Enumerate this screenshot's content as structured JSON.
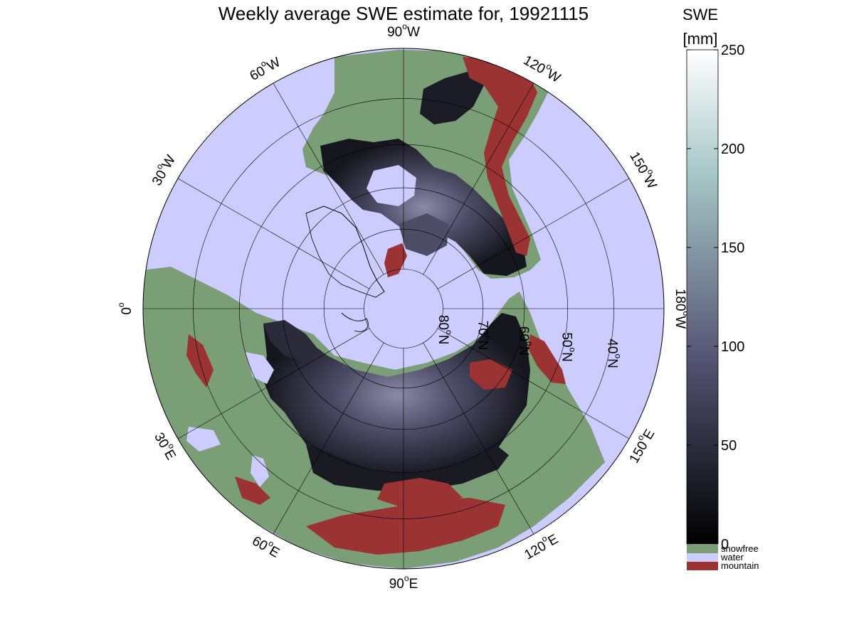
{
  "title": "Weekly average SWE estimate for, 19921115",
  "colorbar": {
    "title_line1": "SWE",
    "title_line2": "[mm]",
    "ticks": [
      0,
      50,
      100,
      150,
      200,
      250
    ],
    "range": [
      0,
      250
    ],
    "colormap": "bone",
    "categories": [
      {
        "label": "snowfree",
        "color": "#7a9e76"
      },
      {
        "label": "water",
        "color": "#ccccff"
      },
      {
        "label": "mountain",
        "color": "#9b3333"
      }
    ]
  },
  "map": {
    "projection": "north-polar-stereographic",
    "latitude_rings": [
      {
        "value": "80",
        "hemi": "N"
      },
      {
        "value": "70",
        "hemi": "N"
      },
      {
        "value": "60",
        "hemi": "N"
      },
      {
        "value": "50",
        "hemi": "N"
      },
      {
        "value": "40",
        "hemi": "N"
      }
    ],
    "longitude_labels": [
      {
        "value": "0",
        "hemi": ""
      },
      {
        "value": "30",
        "hemi": "E"
      },
      {
        "value": "60",
        "hemi": "E"
      },
      {
        "value": "90",
        "hemi": "E"
      },
      {
        "value": "120",
        "hemi": "E"
      },
      {
        "value": "150",
        "hemi": "E"
      },
      {
        "value": "180",
        "hemi": "W"
      },
      {
        "value": "150",
        "hemi": "W"
      },
      {
        "value": "120",
        "hemi": "W"
      },
      {
        "value": "90",
        "hemi": "W"
      },
      {
        "value": "60",
        "hemi": "W"
      },
      {
        "value": "30",
        "hemi": "W"
      }
    ],
    "colors": {
      "water": "#ccccff",
      "snowfree": "#7a9e76",
      "mountain": "#9b3333",
      "snow_low": "#1a1a24",
      "snow_mid": "#4a4a66",
      "snow_high": "#8888a8"
    }
  }
}
